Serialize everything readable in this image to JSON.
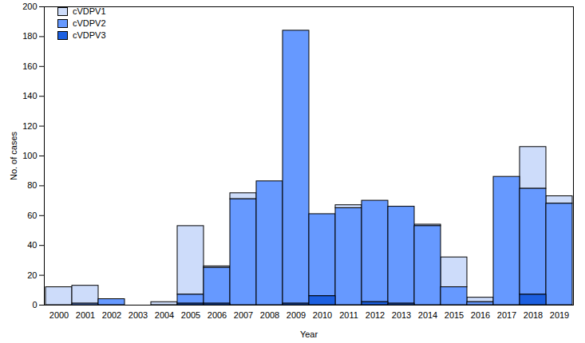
{
  "chart_data": {
    "type": "bar",
    "stacked": true,
    "x_label": "Year",
    "y_label": "No. of cases",
    "categories": [
      "2000",
      "2001",
      "2002",
      "2003",
      "2004",
      "2005",
      "2006",
      "2007",
      "2008",
      "2009",
      "2010",
      "2011",
      "2012",
      "2013",
      "2014",
      "2015",
      "2016",
      "2017",
      "2018",
      "2019"
    ],
    "series": [
      {
        "name": "cVDPV1",
        "color": "#cddcfa",
        "values": [
          12,
          12,
          0,
          0,
          2,
          46,
          1,
          4,
          0,
          0,
          0,
          2,
          0,
          0,
          1,
          20,
          3,
          0,
          28,
          5
        ]
      },
      {
        "name": "cVDPV2",
        "color": "#6699ff",
        "values": [
          0,
          1,
          4,
          0,
          0,
          6,
          24,
          71,
          83,
          183,
          55,
          65,
          68,
          65,
          53,
          12,
          2,
          86,
          71,
          68
        ]
      },
      {
        "name": "cVDPV3",
        "color": "#1c5fe0",
        "values": [
          0,
          0,
          0,
          0,
          0,
          1,
          1,
          0,
          0,
          1,
          6,
          0,
          2,
          1,
          0,
          0,
          0,
          0,
          7,
          0
        ]
      }
    ],
    "ylim": [
      0,
      200
    ],
    "yticks": [
      0,
      20,
      40,
      60,
      80,
      100,
      120,
      140,
      160,
      180,
      200
    ],
    "legend": "top-left",
    "grid": false
  }
}
